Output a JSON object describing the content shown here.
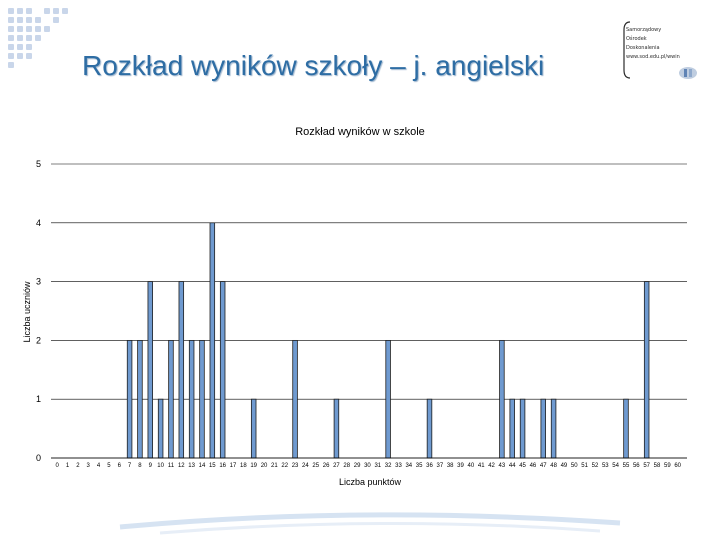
{
  "slide": {
    "title": "Rozkład wyników szkoły – j. angielski"
  },
  "logo": {
    "lines": [
      "Samorządowy",
      "Ośrodek",
      "Doskonalenia",
      "www.sod.edu.pl/wwin"
    ]
  },
  "colors": {
    "title": "#2e6da4",
    "bar_fill": "#6f9ad0",
    "bar_stroke": "#1f1f1f",
    "gridline": "#000000",
    "decor_dots": "#c9d6ea"
  },
  "chart_data": {
    "type": "bar",
    "title": "Rozkład wyników w szkole",
    "xlabel": "Liczba punktów",
    "ylabel": "Liczba uczniów",
    "ylim": [
      0,
      5
    ],
    "yticks": [
      0,
      1,
      2,
      3,
      4,
      5
    ],
    "grid": true,
    "legend": "none",
    "categories": [
      "0",
      "1",
      "2",
      "3",
      "4",
      "5",
      "6",
      "7",
      "8",
      "9",
      "10",
      "11",
      "12",
      "13",
      "14",
      "15",
      "16",
      "17",
      "18",
      "19",
      "20",
      "21",
      "22",
      "23",
      "24",
      "25",
      "26",
      "27",
      "28",
      "29",
      "30",
      "31",
      "32",
      "33",
      "34",
      "35",
      "36",
      "37",
      "38",
      "39",
      "40",
      "41",
      "42",
      "43",
      "44",
      "45",
      "46",
      "47",
      "48",
      "49",
      "50",
      "51",
      "52",
      "53",
      "54",
      "55",
      "56",
      "57",
      "58",
      "59",
      "60"
    ],
    "values": [
      0,
      0,
      0,
      0,
      0,
      0,
      0,
      2,
      2,
      3,
      1,
      2,
      3,
      2,
      2,
      4,
      3,
      0,
      0,
      1,
      0,
      0,
      0,
      2,
      0,
      0,
      0,
      1,
      0,
      0,
      0,
      0,
      2,
      0,
      0,
      0,
      1,
      0,
      0,
      0,
      0,
      0,
      0,
      2,
      1,
      1,
      0,
      1,
      1,
      0,
      0,
      0,
      0,
      0,
      0,
      1,
      0,
      3,
      0,
      0,
      0
    ]
  }
}
